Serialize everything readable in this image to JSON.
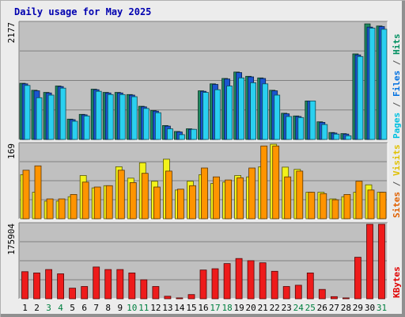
{
  "chart_data": {
    "type": "bar",
    "title": "Daily usage for May 2025",
    "categories": [
      "1",
      "2",
      "3",
      "4",
      "5",
      "6",
      "7",
      "8",
      "9",
      "10",
      "11",
      "12",
      "13",
      "14",
      "15",
      "16",
      "17",
      "18",
      "19",
      "20",
      "21",
      "22",
      "23",
      "24",
      "25",
      "26",
      "27",
      "28",
      "29",
      "30",
      "31"
    ],
    "weekend_days": [
      "3",
      "4",
      "10",
      "11",
      "17",
      "18",
      "24",
      "25",
      "31"
    ],
    "panels": [
      {
        "id": "hits-files-pages",
        "ymax": 2177,
        "ymax_label": "2177",
        "legend": [
          {
            "text": "Pages",
            "color": "#00c0e0"
          },
          {
            "text": " / ",
            "color": "#555555"
          },
          {
            "text": "Files",
            "color": "#0070e0"
          },
          {
            "text": " / ",
            "color": "#555555"
          },
          {
            "text": "Hits",
            "color": "#009060"
          }
        ],
        "series": [
          {
            "name": "Hits",
            "color": "#1f8a60",
            "values": [
              1050,
              920,
              880,
              1000,
              380,
              470,
              940,
              880,
              880,
              840,
              620,
              540,
              260,
              150,
              200,
              910,
              1040,
              1140,
              1260,
              1180,
              1150,
              920,
              490,
              440,
              720,
              330,
              130,
              110,
              1600,
              2160,
              2120
            ]
          },
          {
            "name": "Files",
            "color": "#1a55d0",
            "values": [
              1040,
              910,
              870,
              990,
              370,
              460,
              930,
              870,
              870,
              830,
              610,
              530,
              250,
              140,
              190,
              900,
              1030,
              1130,
              1250,
              1170,
              1140,
              910,
              480,
              430,
              720,
              320,
              120,
              100,
              1580,
              2100,
              2110
            ]
          },
          {
            "name": "Pages",
            "color": "#2ad0f0",
            "values": [
              1010,
              780,
              830,
              960,
              340,
              440,
              900,
              840,
              840,
              800,
              580,
              500,
              200,
              90,
              190,
              880,
              930,
              1000,
              1150,
              1060,
              1040,
              830,
              430,
              410,
              720,
              280,
              100,
              70,
              1550,
              2080,
              2060
            ]
          }
        ]
      },
      {
        "id": "visits-sites",
        "ymax": 169,
        "ymax_label": "169",
        "legend": [
          {
            "text": "Sites",
            "color": "#e06000"
          },
          {
            "text": " / ",
            "color": "#555555"
          },
          {
            "text": "Visits",
            "color": "#e0c000"
          }
        ],
        "series": [
          {
            "name": "Visits",
            "color": "#f2f21a",
            "values": [
              100,
              60,
              40,
              40,
              50,
              98,
              70,
              75,
              118,
              92,
              127,
              85,
              135,
              65,
              85,
              100,
              80,
              83,
              98,
              95,
              118,
              170,
              117,
              112,
              60,
              60,
              45,
              50,
              60,
              77,
              60
            ]
          },
          {
            "name": "Sites",
            "color": "#ff9400",
            "values": [
              110,
              120,
              45,
              45,
              55,
              83,
              72,
              75,
              110,
              82,
              103,
              72,
              108,
              67,
              75,
              115,
              95,
              88,
              93,
              115,
              165,
              165,
              95,
              108,
              60,
              57,
              43,
              55,
              85,
              65,
              60
            ]
          }
        ]
      },
      {
        "id": "kbytes",
        "ymax": 175904,
        "ymax_label": "175904",
        "legend": [
          {
            "text": "KBytes",
            "color": "#e00000"
          }
        ],
        "series": [
          {
            "name": "KBytes",
            "color": "#ee1b1b",
            "values": [
              64000,
              61000,
              69000,
              59000,
              25000,
              29000,
              75000,
              69000,
              69000,
              61000,
              45000,
              29000,
              6000,
              2000,
              10000,
              68000,
              71000,
              83000,
              95000,
              90000,
              85000,
              65000,
              29000,
              32000,
              61000,
              22000,
              5000,
              2000,
              98000,
              175904,
              179000
            ]
          }
        ]
      }
    ]
  }
}
